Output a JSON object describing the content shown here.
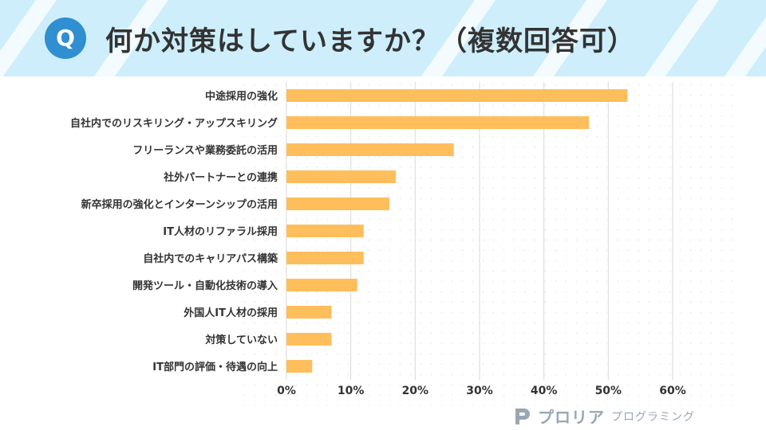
{
  "header": {
    "badge": "Q",
    "title": "何か対策はしていますか？（複数回答可）"
  },
  "chart_data": {
    "type": "bar",
    "orientation": "horizontal",
    "title": "何か対策はしていますか？（複数回答可）",
    "categories": [
      "中途採用の強化",
      "自社内でのリスキリング・アップスキリング",
      "フリーランスや業務委託の活用",
      "社外パートナーとの連携",
      "新卒採用の強化とインターンシップの活用",
      "IT人材のリファラル採用",
      "自社内でのキャリアパス構築",
      "開発ツール・自動化技術の導入",
      "外国人IT人材の採用",
      "対策していない",
      "IT部門の評価・待遇の向上"
    ],
    "values": [
      53,
      47,
      26,
      17,
      16,
      12,
      12,
      11,
      7,
      7,
      4
    ],
    "xlim": [
      0,
      60
    ],
    "xticks": [
      0,
      10,
      20,
      30,
      40,
      50,
      60
    ],
    "tick_labels": [
      "0%",
      "10%",
      "20%",
      "30%",
      "40%",
      "50%",
      "60%"
    ],
    "grid": true,
    "bar_color": "#ffbe5c",
    "grid_color": "#d9d9d9"
  },
  "logo": {
    "name": "プロリア",
    "sub": "プログラミング"
  },
  "colors": {
    "header_bg": "#cdeefa",
    "badge": "#2f8fd0",
    "logo": "#9aa7b3"
  }
}
